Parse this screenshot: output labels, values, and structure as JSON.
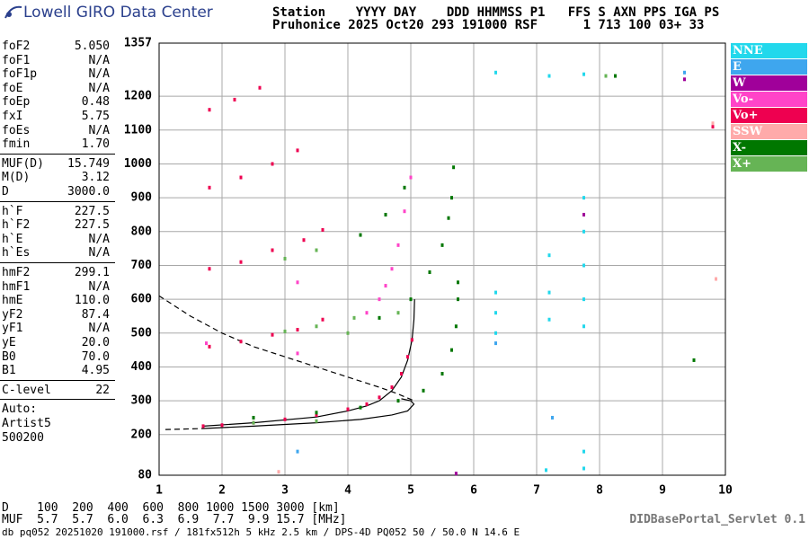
{
  "header": {
    "logo": "Lowell GIRO Data Center",
    "line1": "Station    YYYY DAY    DDD HHMMSS P1   FFS S AXN PPS IGA PS",
    "line2": "Pruhonice 2025 Oct20 293 191000 RSF      1 713 100 03+ 33"
  },
  "parameters": [
    [
      {
        "name": "foF2",
        "value": "5.050"
      },
      {
        "name": "foF1",
        "value": "N/A"
      },
      {
        "name": "foF1p",
        "value": "N/A"
      },
      {
        "name": "foE",
        "value": "N/A"
      },
      {
        "name": "foEp",
        "value": "0.48"
      },
      {
        "name": "fxI",
        "value": "5.75"
      },
      {
        "name": "foEs",
        "value": "N/A"
      },
      {
        "name": "fmin",
        "value": "1.70"
      }
    ],
    [
      {
        "name": "MUF(D)",
        "value": "15.749"
      },
      {
        "name": "M(D)",
        "value": "3.12"
      },
      {
        "name": "D",
        "value": "3000.0"
      }
    ],
    [
      {
        "name": "h`F",
        "value": "227.5"
      },
      {
        "name": "h`F2",
        "value": "227.5"
      },
      {
        "name": "h`E",
        "value": "N/A"
      },
      {
        "name": "h`Es",
        "value": "N/A"
      }
    ],
    [
      {
        "name": "hmF2",
        "value": "299.1"
      },
      {
        "name": "hmF1",
        "value": "N/A"
      },
      {
        "name": "hmE",
        "value": "110.0"
      },
      {
        "name": "yF2",
        "value": "87.4"
      },
      {
        "name": "yF1",
        "value": "N/A"
      },
      {
        "name": "yE",
        "value": "20.0"
      },
      {
        "name": "B0",
        "value": "70.0"
      },
      {
        "name": "B1",
        "value": "4.95"
      }
    ],
    [
      {
        "name": "C-level",
        "value": "22"
      }
    ],
    [
      {
        "name": "Auto:"
      },
      {
        "name": "Artist5"
      },
      {
        "name": "500200"
      }
    ]
  ],
  "bottom": {
    "d_row": "D    100  200  400  600  800 1000 1500 3000 [km]",
    "muf_row": "MUF  5.7  5.7  6.0  6.3  6.9  7.7  9.9 15.7 [MHz]",
    "footer": "db pq052 20251020 191000.rsf / 181fx512h 5 kHz 2.5 km / DPS-4D PQ052 50 / 50.0 N 14.6 E",
    "servlet": "DIDBasePortal_Servlet 0.1"
  },
  "chart_data": {
    "type": "scatter",
    "xlim": [
      1,
      10
    ],
    "xticks": [
      1,
      2,
      3,
      4,
      5,
      6,
      7,
      8,
      9,
      10
    ],
    "ylim": [
      80,
      1357
    ],
    "yticks": [
      80,
      200,
      300,
      400,
      500,
      600,
      700,
      800,
      900,
      1000,
      1100,
      1200,
      1357
    ],
    "grid": true,
    "series": [
      {
        "name": "NNE",
        "color": "#22d8ec",
        "x": [
          6.35,
          6.35,
          6.35,
          7.2,
          7.2,
          7.2,
          7.75,
          7.75,
          7.75,
          7.75,
          7.75,
          7.75,
          7.75,
          6.35,
          7.2,
          7.75,
          7.15
        ],
        "values": [
          620,
          560,
          500,
          730,
          620,
          540,
          900,
          800,
          700,
          600,
          520,
          150,
          100,
          1270,
          1260,
          1265,
          95
        ]
      },
      {
        "name": "E",
        "color": "#3ea6ee",
        "x": [
          6.35,
          7.25,
          9.35,
          3.2
        ],
        "values": [
          470,
          250,
          1270,
          150
        ]
      },
      {
        "name": "W",
        "color": "#a0009a",
        "x": [
          7.75,
          9.35,
          5.72
        ],
        "values": [
          850,
          1250,
          85
        ]
      },
      {
        "name": "Vo-",
        "color": "#ff44c8",
        "x": [
          4.3,
          4.5,
          4.6,
          4.7,
          4.8,
          4.9,
          5.0,
          3.2,
          3.2,
          1.75
        ],
        "values": [
          560,
          600,
          640,
          690,
          760,
          860,
          960,
          650,
          440,
          470
        ]
      },
      {
        "name": "Vo+",
        "color": "#ee0050",
        "x": [
          1.7,
          2.0,
          2.5,
          3.0,
          3.5,
          4.0,
          4.3,
          4.5,
          4.7,
          4.85,
          4.95,
          5.02,
          1.8,
          2.3,
          2.8,
          3.2,
          3.6,
          1.8,
          2.3,
          2.8,
          3.3,
          3.6,
          1.8,
          2.3,
          2.8,
          3.2,
          1.8,
          2.2,
          2.6,
          9.8
        ],
        "values": [
          225,
          228,
          235,
          245,
          258,
          275,
          290,
          310,
          340,
          380,
          430,
          480,
          460,
          475,
          495,
          510,
          540,
          690,
          710,
          745,
          775,
          805,
          930,
          960,
          1000,
          1040,
          1160,
          1190,
          1225,
          1110
        ]
      },
      {
        "name": "SSW",
        "color": "#ffaaaa",
        "x": [
          9.8,
          9.85,
          2.9
        ],
        "values": [
          1120,
          660,
          90
        ]
      },
      {
        "name": "X-",
        "color": "#007700",
        "x": [
          2.5,
          3.5,
          4.2,
          4.8,
          5.2,
          5.5,
          5.65,
          5.72,
          5.75,
          5.75,
          4.5,
          5.0,
          5.3,
          5.5,
          5.6,
          5.65,
          5.68,
          4.2,
          4.6,
          4.9,
          8.25,
          9.5
        ],
        "values": [
          250,
          265,
          280,
          300,
          330,
          380,
          450,
          520,
          600,
          650,
          545,
          600,
          680,
          760,
          840,
          900,
          990,
          790,
          850,
          930,
          1260,
          420
        ]
      },
      {
        "name": "X+",
        "color": "#66b455",
        "x": [
          2.5,
          3.5,
          4.0,
          4.8,
          3.0,
          3.5,
          3.0,
          3.5,
          4.1,
          8.1
        ],
        "values": [
          235,
          240,
          500,
          560,
          505,
          520,
          720,
          745,
          545,
          1260
        ]
      }
    ],
    "curves": [
      {
        "style": "solid",
        "x": [
          1.7,
          2.5,
          3.5,
          4.0,
          4.3,
          4.5,
          4.7,
          4.85,
          4.95,
          5.02,
          5.05,
          5.06
        ],
        "values": [
          225,
          235,
          252,
          270,
          285,
          300,
          330,
          370,
          420,
          480,
          540,
          600
        ]
      },
      {
        "name_hidden": null,
        "style": "solid",
        "x": [
          1.7,
          2.5,
          3.5,
          4.2,
          4.7,
          4.95,
          5.05,
          5.0,
          4.85
        ],
        "values": [
          218,
          225,
          235,
          245,
          258,
          270,
          290,
          300,
          306
        ]
      },
      {
        "style": "dashed",
        "x": [
          1.0,
          1.5,
          2.0,
          2.5,
          3.0,
          3.5,
          4.0,
          4.5,
          4.8,
          5.05
        ],
        "values": [
          610,
          550,
          500,
          460,
          430,
          400,
          370,
          340,
          320,
          300
        ]
      },
      {
        "style": "dashed",
        "x": [
          1.1,
          1.7
        ],
        "values": [
          215,
          218
        ]
      }
    ]
  }
}
